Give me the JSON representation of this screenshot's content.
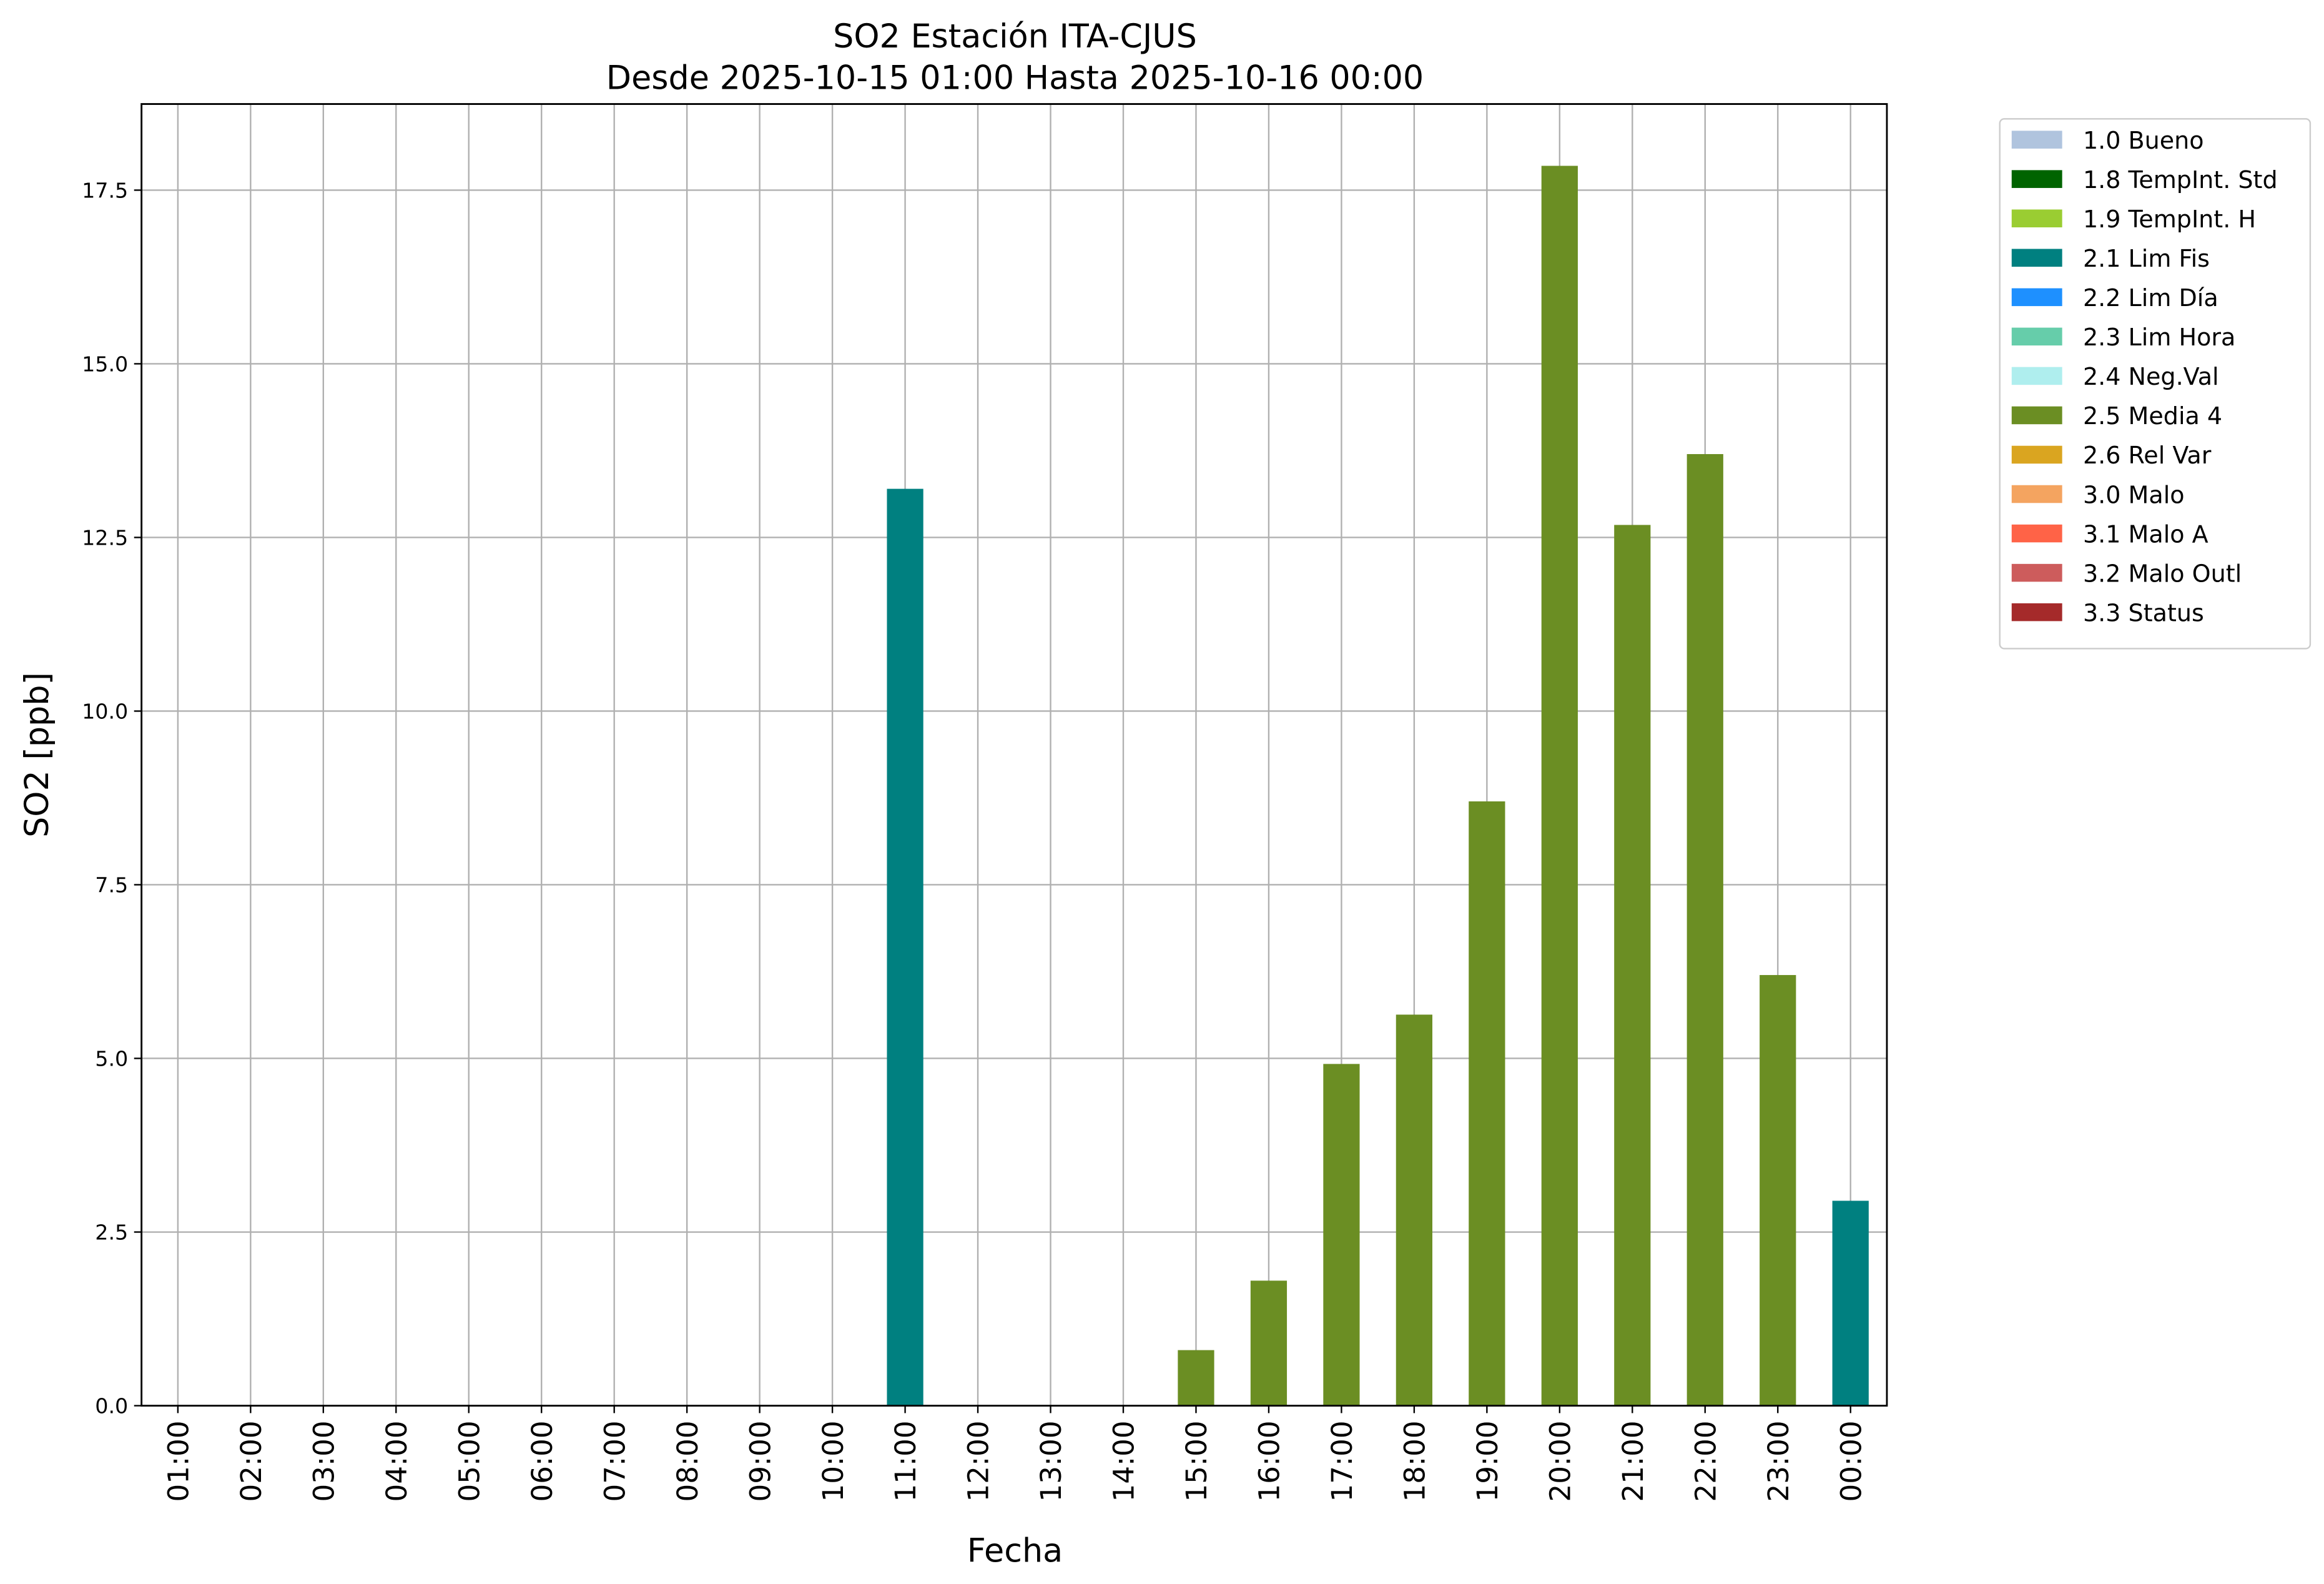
{
  "chart_data": {
    "type": "stacked_bar",
    "title": "SO2 Estación ITA-CJUS",
    "subtitle": "Desde 2025-10-15 01:00 Hasta 2025-10-16 00:00",
    "x_label": "Fecha",
    "y_label": "SO2 [ppb]",
    "categories": [
      "01:00",
      "02:00",
      "03:00",
      "04:00",
      "05:00",
      "06:00",
      "07:00",
      "08:00",
      "09:00",
      "10:00",
      "11:00",
      "12:00",
      "13:00",
      "14:00",
      "15:00",
      "16:00",
      "17:00",
      "18:00",
      "19:00",
      "20:00",
      "21:00",
      "22:00",
      "23:00",
      "00:00"
    ],
    "series": [
      {
        "name": "1.0 Bueno",
        "color": "#b0c4de",
        "values": [
          null,
          null,
          null,
          null,
          null,
          null,
          null,
          null,
          null,
          null,
          null,
          null,
          null,
          null,
          null,
          null,
          null,
          null,
          null,
          null,
          null,
          null,
          null,
          null
        ]
      },
      {
        "name": "1.8 TempInt. Std",
        "color": "#006400",
        "values": [
          null,
          null,
          null,
          null,
          null,
          null,
          null,
          null,
          null,
          null,
          null,
          null,
          null,
          null,
          null,
          null,
          null,
          null,
          null,
          null,
          null,
          null,
          null,
          null
        ]
      },
      {
        "name": "1.9 TempInt. H",
        "color": "#9acd32",
        "values": [
          null,
          null,
          null,
          null,
          null,
          null,
          null,
          null,
          null,
          null,
          null,
          null,
          null,
          null,
          null,
          null,
          null,
          null,
          null,
          null,
          null,
          null,
          null,
          null
        ]
      },
      {
        "name": "2.1 Lim Fis",
        "color": "#008080",
        "values": [
          null,
          null,
          null,
          null,
          null,
          null,
          null,
          null,
          null,
          null,
          13.2,
          null,
          null,
          null,
          null,
          null,
          null,
          null,
          null,
          null,
          null,
          null,
          null,
          2.95
        ]
      },
      {
        "name": "2.2 Lim Día",
        "color": "#1e90ff",
        "values": [
          null,
          null,
          null,
          null,
          null,
          null,
          null,
          null,
          null,
          null,
          null,
          null,
          null,
          null,
          null,
          null,
          null,
          null,
          null,
          null,
          null,
          null,
          null,
          null
        ]
      },
      {
        "name": "2.3 Lim Hora",
        "color": "#66cdaa",
        "values": [
          null,
          null,
          null,
          null,
          null,
          null,
          null,
          null,
          null,
          null,
          null,
          null,
          null,
          null,
          null,
          null,
          null,
          null,
          null,
          null,
          null,
          null,
          null,
          null
        ]
      },
      {
        "name": "2.4 Neg.Val",
        "color": "#afeeee",
        "values": [
          null,
          null,
          null,
          null,
          null,
          null,
          null,
          null,
          null,
          null,
          null,
          null,
          null,
          null,
          null,
          null,
          null,
          null,
          null,
          null,
          null,
          null,
          null,
          null
        ]
      },
      {
        "name": "2.5 Media 4",
        "color": "#6b8e23",
        "values": [
          null,
          null,
          null,
          null,
          null,
          null,
          null,
          null,
          null,
          null,
          null,
          null,
          null,
          null,
          0.8,
          1.8,
          4.92,
          5.63,
          8.7,
          17.85,
          12.68,
          13.7,
          6.2,
          null
        ]
      },
      {
        "name": "2.6 Rel Var",
        "color": "#daa520",
        "values": [
          null,
          null,
          null,
          null,
          null,
          null,
          null,
          null,
          null,
          null,
          null,
          null,
          null,
          null,
          null,
          null,
          null,
          null,
          null,
          null,
          null,
          null,
          null,
          null
        ]
      },
      {
        "name": "3.0 Malo",
        "color": "#f4a460",
        "values": [
          null,
          null,
          null,
          null,
          null,
          null,
          null,
          null,
          null,
          null,
          null,
          null,
          null,
          null,
          null,
          null,
          null,
          null,
          null,
          null,
          null,
          null,
          null,
          null
        ]
      },
      {
        "name": "3.1 Malo A",
        "color": "#ff6347",
        "values": [
          null,
          null,
          null,
          null,
          null,
          null,
          null,
          null,
          null,
          null,
          null,
          null,
          null,
          null,
          null,
          null,
          null,
          null,
          null,
          null,
          null,
          null,
          null,
          null
        ]
      },
      {
        "name": "3.2 Malo Outl",
        "color": "#cd5c5c",
        "values": [
          null,
          null,
          null,
          null,
          null,
          null,
          null,
          null,
          null,
          null,
          null,
          null,
          null,
          null,
          null,
          null,
          null,
          null,
          null,
          null,
          null,
          null,
          null,
          null
        ]
      },
      {
        "name": "3.3 Status",
        "color": "#a52a2a",
        "values": [
          null,
          null,
          null,
          null,
          null,
          null,
          null,
          null,
          null,
          null,
          null,
          null,
          null,
          null,
          null,
          null,
          null,
          null,
          null,
          null,
          null,
          null,
          null,
          null
        ]
      }
    ],
    "ylim": [
      0,
      18.74
    ],
    "yticks": [
      {
        "value": 0,
        "label": "0.0"
      },
      2.5,
      {
        "value": 5,
        "label": "5.0"
      },
      7.5,
      {
        "value": 10,
        "label": "10.0"
      },
      12.5,
      {
        "value": 15,
        "label": "15.0"
      },
      17.5
    ],
    "grid": true,
    "legend": "outside upper right"
  }
}
